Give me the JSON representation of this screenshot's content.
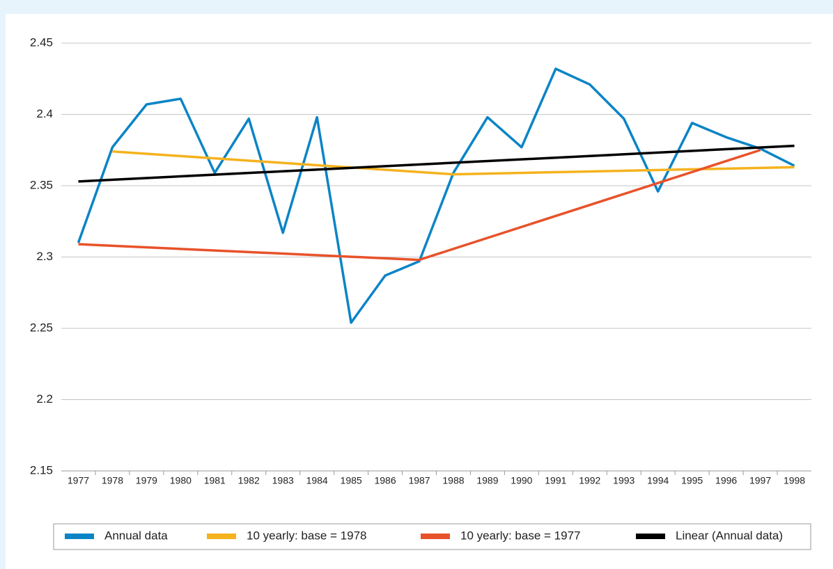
{
  "chart_data": {
    "type": "line",
    "categories": [
      "1977",
      "1978",
      "1979",
      "1980",
      "1981",
      "1982",
      "1983",
      "1984",
      "1985",
      "1986",
      "1987",
      "1988",
      "1989",
      "1990",
      "1991",
      "1992",
      "1993",
      "1994",
      "1995",
      "1996",
      "1997",
      "1998"
    ],
    "series": [
      {
        "name": "Annual data",
        "color": "#0b84c6",
        "values": [
          2.31,
          2.377,
          2.407,
          2.411,
          2.359,
          2.397,
          2.317,
          2.398,
          2.254,
          2.287,
          2.297,
          2.359,
          2.398,
          2.377,
          2.432,
          2.421,
          2.397,
          2.346,
          2.394,
          2.384,
          2.376,
          2.364
        ]
      },
      {
        "name": "10 yearly: base = 1978",
        "color": "#f5b21d",
        "x": [
          "1978",
          "1988",
          "1998"
        ],
        "values": [
          2.374,
          2.358,
          2.363
        ]
      },
      {
        "name": "10 yearly: base = 1977",
        "color": "#e8522a",
        "x": [
          "1977",
          "1987",
          "1997"
        ],
        "values": [
          2.309,
          2.298,
          2.375
        ]
      },
      {
        "name": "Linear (Annual data)",
        "color": "#000000",
        "x": [
          "1977",
          "1998"
        ],
        "values": [
          2.353,
          2.378
        ]
      }
    ],
    "ylim": [
      2.15,
      2.45
    ],
    "yticks": [
      2.15,
      2.2,
      2.25,
      2.3,
      2.35,
      2.4,
      2.45
    ],
    "grid": true,
    "legend": "bottom"
  }
}
